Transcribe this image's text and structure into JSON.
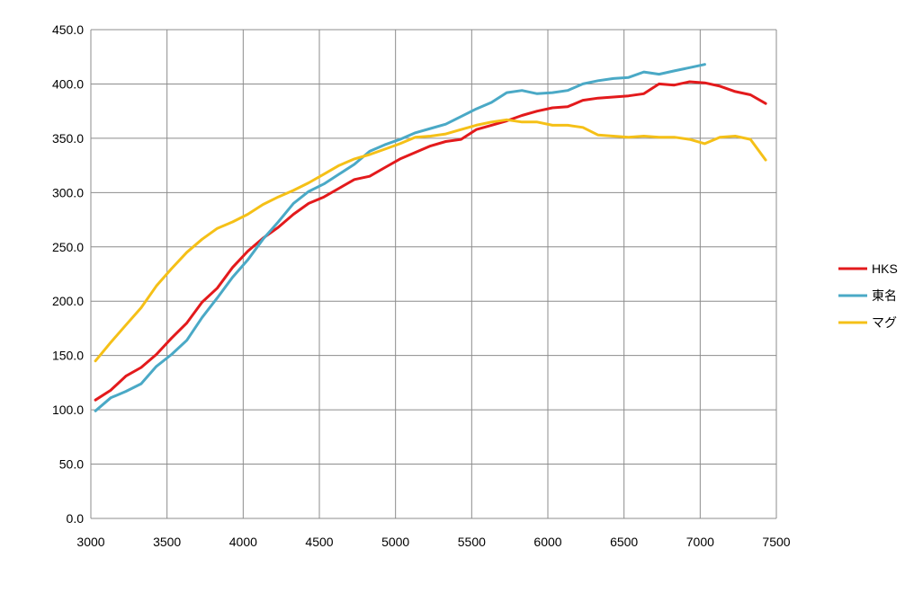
{
  "chart_data": {
    "type": "line",
    "title": "",
    "xlabel": "",
    "ylabel": "",
    "xlim": [
      3000,
      7500
    ],
    "ylim": [
      0,
      450
    ],
    "x_ticks": [
      "3000",
      "3500",
      "4000",
      "4500",
      "5000",
      "5500",
      "6000",
      "6500",
      "7000",
      "7500"
    ],
    "y_ticks": [
      "0.0",
      "50.0",
      "100.0",
      "150.0",
      "200.0",
      "250.0",
      "300.0",
      "350.0",
      "400.0",
      "450.0"
    ],
    "grid": true,
    "legend_position": "right",
    "series": [
      {
        "name": "HKS",
        "color": "#e31a1c",
        "points": [
          [
            3030,
            109
          ],
          [
            3130,
            118
          ],
          [
            3230,
            131
          ],
          [
            3330,
            139
          ],
          [
            3430,
            151
          ],
          [
            3530,
            166
          ],
          [
            3630,
            180
          ],
          [
            3730,
            199
          ],
          [
            3830,
            212
          ],
          [
            3930,
            231
          ],
          [
            4030,
            246
          ],
          [
            4130,
            258
          ],
          [
            4230,
            268
          ],
          [
            4330,
            280
          ],
          [
            4430,
            290
          ],
          [
            4530,
            296
          ],
          [
            4630,
            304
          ],
          [
            4730,
            312
          ],
          [
            4830,
            315
          ],
          [
            4930,
            323
          ],
          [
            5030,
            331
          ],
          [
            5130,
            337
          ],
          [
            5230,
            343
          ],
          [
            5330,
            347
          ],
          [
            5430,
            349
          ],
          [
            5530,
            358
          ],
          [
            5630,
            362
          ],
          [
            5730,
            366
          ],
          [
            5830,
            371
          ],
          [
            5930,
            375
          ],
          [
            6030,
            378
          ],
          [
            6130,
            379
          ],
          [
            6230,
            385
          ],
          [
            6330,
            387
          ],
          [
            6430,
            388
          ],
          [
            6530,
            389
          ],
          [
            6630,
            391
          ],
          [
            6730,
            400
          ],
          [
            6830,
            399
          ],
          [
            6930,
            402
          ],
          [
            7030,
            401
          ],
          [
            7130,
            398
          ],
          [
            7230,
            393
          ],
          [
            7330,
            390
          ],
          [
            7430,
            382
          ]
        ]
      },
      {
        "name": "東名",
        "color": "#4aa9c6",
        "points": [
          [
            3030,
            99
          ],
          [
            3130,
            111
          ],
          [
            3230,
            117
          ],
          [
            3330,
            124
          ],
          [
            3430,
            140
          ],
          [
            3530,
            151
          ],
          [
            3630,
            164
          ],
          [
            3730,
            185
          ],
          [
            3830,
            203
          ],
          [
            3930,
            222
          ],
          [
            4030,
            238
          ],
          [
            4130,
            257
          ],
          [
            4230,
            273
          ],
          [
            4330,
            290
          ],
          [
            4430,
            301
          ],
          [
            4530,
            308
          ],
          [
            4630,
            317
          ],
          [
            4730,
            326
          ],
          [
            4830,
            338
          ],
          [
            4930,
            344
          ],
          [
            5030,
            349
          ],
          [
            5130,
            355
          ],
          [
            5230,
            359
          ],
          [
            5330,
            363
          ],
          [
            5430,
            370
          ],
          [
            5530,
            377
          ],
          [
            5630,
            383
          ],
          [
            5730,
            392
          ],
          [
            5830,
            394
          ],
          [
            5930,
            391
          ],
          [
            6030,
            392
          ],
          [
            6130,
            394
          ],
          [
            6230,
            400
          ],
          [
            6330,
            403
          ],
          [
            6430,
            405
          ],
          [
            6530,
            406
          ],
          [
            6630,
            411
          ],
          [
            6730,
            409
          ],
          [
            6830,
            412
          ],
          [
            6930,
            415
          ],
          [
            7030,
            418
          ]
        ]
      },
      {
        "name": "マグ",
        "color": "#f5c017",
        "points": [
          [
            3030,
            145
          ],
          [
            3130,
            162
          ],
          [
            3230,
            178
          ],
          [
            3330,
            194
          ],
          [
            3430,
            214
          ],
          [
            3530,
            230
          ],
          [
            3630,
            245
          ],
          [
            3730,
            257
          ],
          [
            3830,
            267
          ],
          [
            3930,
            273
          ],
          [
            4030,
            280
          ],
          [
            4130,
            289
          ],
          [
            4230,
            296
          ],
          [
            4330,
            302
          ],
          [
            4430,
            309
          ],
          [
            4530,
            317
          ],
          [
            4630,
            325
          ],
          [
            4730,
            331
          ],
          [
            4830,
            335
          ],
          [
            4930,
            340
          ],
          [
            5030,
            345
          ],
          [
            5130,
            351
          ],
          [
            5230,
            352
          ],
          [
            5330,
            354
          ],
          [
            5430,
            358
          ],
          [
            5530,
            362
          ],
          [
            5630,
            365
          ],
          [
            5730,
            367
          ],
          [
            5830,
            365
          ],
          [
            5930,
            365
          ],
          [
            6030,
            362
          ],
          [
            6130,
            362
          ],
          [
            6230,
            360
          ],
          [
            6330,
            353
          ],
          [
            6430,
            352
          ],
          [
            6530,
            351
          ],
          [
            6630,
            352
          ],
          [
            6730,
            351
          ],
          [
            6830,
            351
          ],
          [
            6930,
            349
          ],
          [
            7030,
            345
          ],
          [
            7130,
            351
          ],
          [
            7230,
            352
          ],
          [
            7330,
            349
          ],
          [
            7430,
            330
          ]
        ]
      }
    ]
  }
}
